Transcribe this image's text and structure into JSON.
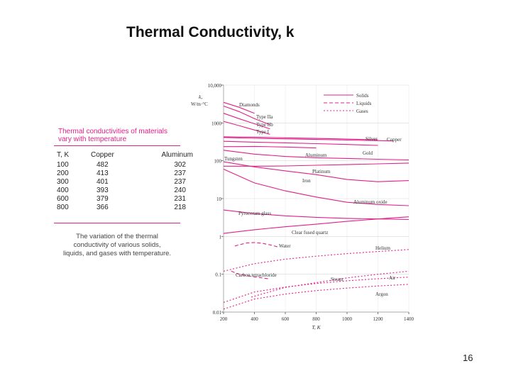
{
  "slide": {
    "title": "Thermal Conductivity, k",
    "page_number": "16"
  },
  "table": {
    "caption_lines": [
      "Thermal conductivities of materials",
      "vary with temperature"
    ],
    "headers": [
      "T, K",
      "Copper",
      "Aluminum"
    ],
    "rows": [
      [
        "100",
        "482",
        "302"
      ],
      [
        "200",
        "413",
        "237"
      ],
      [
        "300",
        "401",
        "237"
      ],
      [
        "400",
        "393",
        "240"
      ],
      [
        "600",
        "379",
        "231"
      ],
      [
        "800",
        "366",
        "218"
      ]
    ]
  },
  "figure_caption_lines": [
    "The variation of the thermal",
    "conductivity of various solids,",
    "liquids, and gases with temperature."
  ],
  "chart_data": {
    "type": "line",
    "title": "",
    "xlabel": "T, K",
    "ylabel_lines": [
      "k,",
      "W/m·°C"
    ],
    "x_scale": "linear",
    "y_scale": "log",
    "xlim": [
      200,
      1400
    ],
    "ylim": [
      0.01,
      10000
    ],
    "x_ticks": [
      200,
      400,
      600,
      800,
      1000,
      1200,
      1400
    ],
    "x_tick_labels": [
      "200",
      "400",
      "600",
      "800",
      "1000",
      "1200",
      "1400"
    ],
    "y_ticks": [
      0.01,
      0.1,
      1,
      10,
      100,
      1000,
      10000
    ],
    "y_tick_labels": [
      "0.01",
      "0.1",
      "1",
      "10",
      "100",
      "1000",
      "10,000"
    ],
    "colors": {
      "curve": "#e0218a",
      "axis": "#555555",
      "label": "#333333"
    },
    "legend": {
      "placement": "top-right",
      "entries": [
        {
          "label": "Solids",
          "style": "solid"
        },
        {
          "label": "Liquids",
          "style": "dashed"
        },
        {
          "label": "Gases",
          "style": "dotted"
        }
      ]
    },
    "series": [
      {
        "name": "Diamonds",
        "style": "solid",
        "points": [
          [
            200,
            3500
          ],
          [
            300,
            2600
          ],
          [
            400,
            1800
          ]
        ]
      },
      {
        "name": "Type IIa",
        "style": "solid",
        "points": [
          [
            200,
            2800
          ],
          [
            300,
            2000
          ],
          [
            400,
            1300
          ],
          [
            500,
            900
          ]
        ]
      },
      {
        "name": "Type IIb",
        "style": "solid",
        "points": [
          [
            200,
            1800
          ],
          [
            300,
            1300
          ],
          [
            400,
            950
          ],
          [
            500,
            700
          ]
        ]
      },
      {
        "name": "Type I",
        "style": "solid",
        "points": [
          [
            200,
            1100
          ],
          [
            300,
            850
          ],
          [
            400,
            650
          ],
          [
            500,
            500
          ]
        ]
      },
      {
        "name": "Silver",
        "style": "solid",
        "points": [
          [
            200,
            430
          ],
          [
            400,
            420
          ],
          [
            600,
            405
          ],
          [
            800,
            390
          ],
          [
            1000,
            375
          ],
          [
            1200,
            360
          ]
        ]
      },
      {
        "name": "Copper",
        "style": "solid",
        "points": [
          [
            200,
            413
          ],
          [
            300,
            401
          ],
          [
            400,
            393
          ],
          [
            600,
            379
          ],
          [
            800,
            366
          ],
          [
            1000,
            352
          ],
          [
            1300,
            335
          ]
        ]
      },
      {
        "name": "Gold",
        "style": "solid",
        "points": [
          [
            200,
            327
          ],
          [
            400,
            311
          ],
          [
            600,
            298
          ],
          [
            800,
            284
          ],
          [
            1000,
            270
          ],
          [
            1200,
            255
          ]
        ]
      },
      {
        "name": "Aluminum",
        "style": "solid",
        "points": [
          [
            200,
            237
          ],
          [
            300,
            237
          ],
          [
            400,
            240
          ],
          [
            600,
            231
          ],
          [
            800,
            218
          ]
        ]
      },
      {
        "name": "Tungsten",
        "style": "solid",
        "points": [
          [
            200,
            190
          ],
          [
            400,
            150
          ],
          [
            600,
            130
          ],
          [
            800,
            120
          ],
          [
            1000,
            115
          ],
          [
            1200,
            110
          ],
          [
            1400,
            105
          ]
        ]
      },
      {
        "name": "Platinum",
        "style": "solid",
        "points": [
          [
            200,
            72
          ],
          [
            400,
            72
          ],
          [
            600,
            73
          ],
          [
            800,
            76
          ],
          [
            1000,
            79
          ],
          [
            1200,
            83
          ],
          [
            1400,
            87
          ]
        ]
      },
      {
        "name": "Iron",
        "style": "solid",
        "points": [
          [
            200,
            94
          ],
          [
            400,
            69
          ],
          [
            600,
            54
          ],
          [
            800,
            43
          ],
          [
            1000,
            32
          ],
          [
            1200,
            28
          ],
          [
            1400,
            30
          ]
        ]
      },
      {
        "name": "Aluminum oxide",
        "style": "solid",
        "points": [
          [
            200,
            60
          ],
          [
            400,
            26
          ],
          [
            600,
            16
          ],
          [
            800,
            11
          ],
          [
            1000,
            8
          ],
          [
            1200,
            7
          ],
          [
            1400,
            6.5
          ]
        ]
      },
      {
        "name": "Pyroceram glass",
        "style": "solid",
        "points": [
          [
            200,
            5
          ],
          [
            400,
            4
          ],
          [
            600,
            3.5
          ],
          [
            800,
            3.2
          ],
          [
            1000,
            3
          ],
          [
            1200,
            2.9
          ],
          [
            1400,
            2.8
          ]
        ]
      },
      {
        "name": "Clear fused quartz",
        "style": "solid",
        "points": [
          [
            200,
            1.2
          ],
          [
            400,
            1.5
          ],
          [
            600,
            1.8
          ],
          [
            800,
            2.1
          ],
          [
            1000,
            2.5
          ],
          [
            1200,
            2.9
          ],
          [
            1400,
            3.3
          ]
        ]
      },
      {
        "name": "Water",
        "style": "dashed",
        "points": [
          [
            273,
            0.56
          ],
          [
            300,
            0.6
          ],
          [
            350,
            0.67
          ],
          [
            400,
            0.69
          ],
          [
            450,
            0.66
          ],
          [
            500,
            0.6
          ],
          [
            550,
            0.53
          ]
        ]
      },
      {
        "name": "Helium",
        "style": "dotted",
        "points": [
          [
            200,
            0.12
          ],
          [
            400,
            0.19
          ],
          [
            600,
            0.25
          ],
          [
            800,
            0.3
          ],
          [
            1000,
            0.35
          ],
          [
            1200,
            0.4
          ],
          [
            1400,
            0.45
          ]
        ]
      },
      {
        "name": "Carbon tetrachloride",
        "style": "dashed",
        "points": [
          [
            250,
            0.12
          ],
          [
            300,
            0.1
          ],
          [
            400,
            0.085
          ],
          [
            500,
            0.075
          ]
        ]
      },
      {
        "name": "Steam",
        "style": "dotted",
        "points": [
          [
            380,
            0.025
          ],
          [
            600,
            0.045
          ],
          [
            800,
            0.06
          ],
          [
            1000,
            0.08
          ],
          [
            1200,
            0.1
          ],
          [
            1400,
            0.12
          ]
        ]
      },
      {
        "name": "Air",
        "style": "dotted",
        "points": [
          [
            200,
            0.018
          ],
          [
            400,
            0.034
          ],
          [
            600,
            0.046
          ],
          [
            800,
            0.057
          ],
          [
            1000,
            0.067
          ],
          [
            1200,
            0.076
          ],
          [
            1400,
            0.084
          ]
        ]
      },
      {
        "name": "Argon",
        "style": "dotted",
        "points": [
          [
            200,
            0.012
          ],
          [
            400,
            0.022
          ],
          [
            600,
            0.03
          ],
          [
            800,
            0.037
          ],
          [
            1000,
            0.043
          ],
          [
            1200,
            0.049
          ],
          [
            1400,
            0.054
          ]
        ]
      }
    ]
  }
}
